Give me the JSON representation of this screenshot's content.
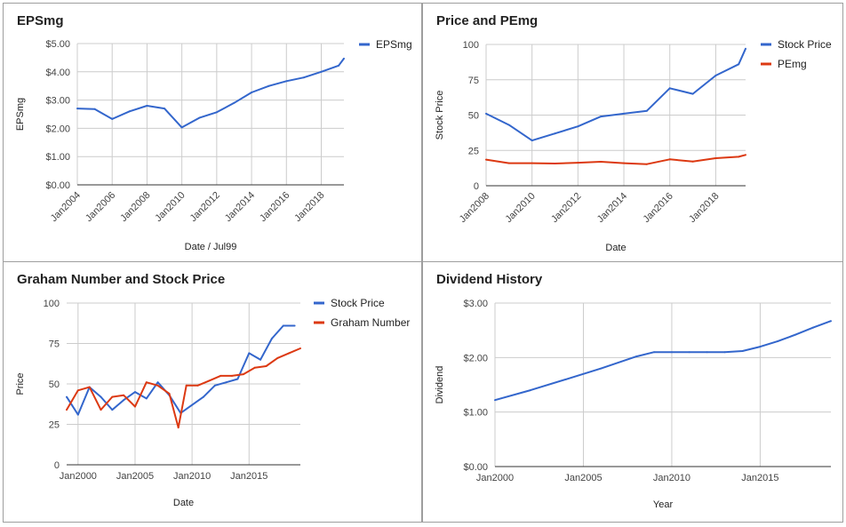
{
  "colors": {
    "blue": "#3366cc",
    "red": "#dc3912",
    "grid": "#cccccc",
    "axis": "#333333"
  },
  "chart_data": [
    {
      "id": "epsmg",
      "type": "line",
      "title": "EPSmg",
      "xlabel": "Date / Jul99",
      "ylabel": "EPSmg",
      "x_ticks": [
        "Jan2004",
        "Jan2006",
        "Jan2008",
        "Jan2010",
        "Jan2012",
        "Jan2014",
        "Jan2016",
        "Jan2018"
      ],
      "x_range": [
        2004,
        2019.3
      ],
      "ylim": [
        0,
        5
      ],
      "y_ticks": [
        0,
        1,
        2,
        3,
        4,
        5
      ],
      "y_tick_labels": [
        "$0.00",
        "$1.00",
        "$2.00",
        "$3.00",
        "$4.00",
        "$5.00"
      ],
      "grid": true,
      "legend_position": "right",
      "series": [
        {
          "name": "EPSmg",
          "color": "#3366cc",
          "x": [
            2004,
            2005,
            2006,
            2007,
            2008,
            2009,
            2010,
            2011,
            2012,
            2013,
            2014,
            2015,
            2016,
            2017,
            2018,
            2019,
            2019.3
          ],
          "y": [
            2.7,
            2.68,
            2.33,
            2.6,
            2.8,
            2.7,
            2.03,
            2.37,
            2.57,
            2.9,
            3.27,
            3.5,
            3.67,
            3.8,
            4.0,
            4.22,
            4.47
          ]
        }
      ]
    },
    {
      "id": "price-pemg",
      "type": "line",
      "title": "Price and PEmg",
      "xlabel": "Date",
      "ylabel": "Stock Price",
      "x_ticks": [
        "Jan2008",
        "Jan2010",
        "Jan2012",
        "Jan2014",
        "Jan2016",
        "Jan2018"
      ],
      "x_range": [
        2008,
        2019.3
      ],
      "ylim": [
        0,
        100
      ],
      "y_ticks": [
        0,
        25,
        50,
        75,
        100
      ],
      "y_tick_labels": [
        "0",
        "25",
        "50",
        "75",
        "100"
      ],
      "grid": true,
      "legend_position": "right",
      "series": [
        {
          "name": "Stock Price",
          "color": "#3366cc",
          "x": [
            2008,
            2009,
            2010,
            2011,
            2012,
            2013,
            2014,
            2015,
            2016,
            2017,
            2018,
            2019,
            2019.3
          ],
          "y": [
            51,
            43,
            32,
            37,
            42,
            49,
            51,
            53,
            69,
            65,
            78,
            86,
            97
          ]
        },
        {
          "name": "PEmg",
          "color": "#dc3912",
          "x": [
            2008,
            2009,
            2010,
            2011,
            2012,
            2013,
            2014,
            2015,
            2016,
            2017,
            2018,
            2019,
            2019.3
          ],
          "y": [
            18.5,
            16,
            16,
            15.7,
            16.3,
            17,
            16,
            15.3,
            18.7,
            17.2,
            19.5,
            20.5,
            21.8
          ]
        }
      ]
    },
    {
      "id": "graham",
      "type": "line",
      "title": "Graham Number and Stock Price",
      "xlabel": "Date",
      "ylabel": "Price",
      "x_ticks": [
        "Jan2000",
        "Jan2005",
        "Jan2010",
        "Jan2015"
      ],
      "x_tick_values": [
        2000,
        2005,
        2010,
        2015
      ],
      "x_range": [
        1999,
        2019.5
      ],
      "ylim": [
        0,
        100
      ],
      "y_ticks": [
        0,
        25,
        50,
        75,
        100
      ],
      "y_tick_labels": [
        "0",
        "25",
        "50",
        "75",
        "100"
      ],
      "grid": true,
      "legend_position": "right",
      "series": [
        {
          "name": "Stock Price",
          "color": "#3366cc",
          "x": [
            1999,
            2000,
            2001,
            2002,
            2003,
            2004,
            2005,
            2006,
            2007,
            2008,
            2009,
            2010,
            2011,
            2012,
            2013,
            2014,
            2015,
            2016,
            2017,
            2018,
            2019
          ],
          "y": [
            42,
            31,
            48,
            42,
            34,
            40,
            45,
            41,
            51,
            43,
            32,
            37,
            42,
            49,
            51,
            53,
            69,
            65,
            78,
            86,
            86
          ]
        },
        {
          "name": "Graham Number",
          "color": "#dc3912",
          "x": [
            1999,
            2000,
            2001,
            2002,
            2003,
            2004,
            2005,
            2006,
            2007,
            2008,
            2008.8,
            2009.5,
            2010.5,
            2011.5,
            2012.5,
            2013.5,
            2014.5,
            2015.5,
            2016.5,
            2017.5,
            2018.5,
            2019.5
          ],
          "y": [
            34,
            46,
            48,
            34,
            42,
            43,
            36,
            51,
            49,
            44,
            23,
            49,
            49,
            52,
            55,
            55,
            56,
            60,
            61,
            66,
            69,
            72
          ]
        }
      ]
    },
    {
      "id": "dividend",
      "type": "line",
      "title": "Dividend History",
      "xlabel": "Year",
      "ylabel": "Dividend",
      "x_ticks": [
        "Jan2000",
        "Jan2005",
        "Jan2010",
        "Jan2015"
      ],
      "x_tick_values": [
        2000,
        2005,
        2010,
        2015
      ],
      "x_range": [
        2000,
        2019
      ],
      "ylim": [
        0,
        3
      ],
      "y_ticks": [
        0,
        1,
        2,
        3
      ],
      "y_tick_labels": [
        "$0.00",
        "$1.00",
        "$2.00",
        "$3.00"
      ],
      "grid": true,
      "legend_position": "none",
      "series": [
        {
          "name": "",
          "color": "#3366cc",
          "x": [
            2000,
            2002,
            2004,
            2006,
            2008,
            2009,
            2010,
            2011,
            2012,
            2013,
            2014,
            2015,
            2016,
            2017,
            2018,
            2019
          ],
          "y": [
            1.22,
            1.4,
            1.6,
            1.8,
            2.02,
            2.1,
            2.1,
            2.1,
            2.1,
            2.1,
            2.12,
            2.2,
            2.3,
            2.42,
            2.55,
            2.67
          ]
        }
      ]
    }
  ]
}
